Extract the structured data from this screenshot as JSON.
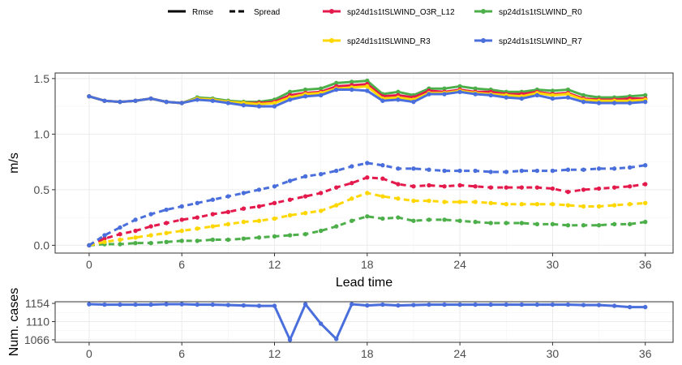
{
  "chart_data": [
    {
      "type": "line",
      "xlabel": "Lead time",
      "ylabel": "m/s",
      "xlim": [
        -2.2,
        37.8
      ],
      "ylim": [
        -0.07,
        1.55
      ],
      "xticks": [
        0,
        6,
        12,
        18,
        24,
        30,
        36
      ],
      "yticks": [
        0.0,
        0.5,
        1.0,
        1.5
      ],
      "ytick_labels": [
        "0.0",
        "0.5",
        "1.0",
        "1.5"
      ],
      "grid": true,
      "legend_position": "top",
      "linetype_legend": [
        {
          "label": "Rmse",
          "style": "solid"
        },
        {
          "label": "Spread",
          "style": "dashed"
        }
      ],
      "x": [
        0,
        1,
        2,
        3,
        4,
        5,
        6,
        7,
        8,
        9,
        10,
        11,
        12,
        13,
        14,
        15,
        16,
        17,
        18,
        19,
        20,
        21,
        22,
        23,
        24,
        25,
        26,
        27,
        28,
        29,
        30,
        31,
        32,
        33,
        34,
        35,
        36
      ],
      "series": [
        {
          "name": "sp24d1s1tSLWIND_R0",
          "color": "#4daf4a",
          "rmse": [
            1.34,
            1.3,
            1.29,
            1.3,
            1.32,
            1.29,
            1.28,
            1.33,
            1.32,
            1.3,
            1.29,
            1.29,
            1.31,
            1.38,
            1.4,
            1.41,
            1.46,
            1.47,
            1.48,
            1.36,
            1.38,
            1.35,
            1.41,
            1.41,
            1.43,
            1.41,
            1.4,
            1.38,
            1.38,
            1.4,
            1.39,
            1.4,
            1.35,
            1.33,
            1.33,
            1.34,
            1.35
          ],
          "spread": [
            0.0,
            0.01,
            0.01,
            0.02,
            0.02,
            0.03,
            0.04,
            0.04,
            0.05,
            0.05,
            0.06,
            0.07,
            0.08,
            0.09,
            0.1,
            0.13,
            0.17,
            0.22,
            0.26,
            0.24,
            0.25,
            0.22,
            0.23,
            0.23,
            0.22,
            0.21,
            0.2,
            0.2,
            0.2,
            0.19,
            0.19,
            0.18,
            0.18,
            0.18,
            0.19,
            0.19,
            0.21
          ]
        },
        {
          "name": "sp24d1s1tSLWIND_O3R_L12",
          "color": "#e41a4c",
          "rmse": [
            1.34,
            1.3,
            1.29,
            1.3,
            1.32,
            1.29,
            1.28,
            1.32,
            1.31,
            1.29,
            1.28,
            1.28,
            1.29,
            1.35,
            1.37,
            1.38,
            1.43,
            1.44,
            1.45,
            1.34,
            1.35,
            1.33,
            1.39,
            1.38,
            1.4,
            1.38,
            1.38,
            1.36,
            1.36,
            1.38,
            1.36,
            1.37,
            1.32,
            1.31,
            1.31,
            1.32,
            1.32
          ],
          "spread": [
            0.0,
            0.06,
            0.1,
            0.13,
            0.17,
            0.2,
            0.23,
            0.25,
            0.28,
            0.3,
            0.33,
            0.35,
            0.38,
            0.41,
            0.44,
            0.47,
            0.52,
            0.56,
            0.61,
            0.6,
            0.55,
            0.53,
            0.54,
            0.53,
            0.54,
            0.53,
            0.52,
            0.52,
            0.52,
            0.52,
            0.51,
            0.48,
            0.5,
            0.51,
            0.52,
            0.53,
            0.55
          ]
        },
        {
          "name": "sp24d1s1tSLWIND_R3",
          "color": "#ffd700",
          "rmse": [
            1.34,
            1.3,
            1.29,
            1.3,
            1.32,
            1.29,
            1.28,
            1.32,
            1.31,
            1.29,
            1.28,
            1.27,
            1.28,
            1.33,
            1.36,
            1.37,
            1.41,
            1.42,
            1.43,
            1.32,
            1.33,
            1.31,
            1.37,
            1.37,
            1.39,
            1.37,
            1.36,
            1.35,
            1.34,
            1.37,
            1.35,
            1.36,
            1.31,
            1.3,
            1.3,
            1.3,
            1.31
          ],
          "spread": [
            0.0,
            0.03,
            0.05,
            0.07,
            0.09,
            0.11,
            0.13,
            0.15,
            0.17,
            0.19,
            0.21,
            0.22,
            0.24,
            0.27,
            0.29,
            0.31,
            0.36,
            0.42,
            0.47,
            0.44,
            0.42,
            0.4,
            0.4,
            0.39,
            0.39,
            0.39,
            0.38,
            0.37,
            0.37,
            0.37,
            0.37,
            0.36,
            0.35,
            0.35,
            0.36,
            0.37,
            0.38
          ]
        },
        {
          "name": "sp24d1s1tSLWIND_R7",
          "color": "#4a6fdc",
          "rmse": [
            1.34,
            1.3,
            1.29,
            1.3,
            1.32,
            1.29,
            1.28,
            1.31,
            1.3,
            1.28,
            1.26,
            1.25,
            1.25,
            1.31,
            1.34,
            1.35,
            1.4,
            1.4,
            1.39,
            1.3,
            1.31,
            1.29,
            1.36,
            1.36,
            1.38,
            1.36,
            1.35,
            1.33,
            1.32,
            1.35,
            1.32,
            1.33,
            1.29,
            1.28,
            1.28,
            1.28,
            1.29
          ],
          "spread": [
            0.0,
            0.09,
            0.16,
            0.23,
            0.28,
            0.32,
            0.35,
            0.38,
            0.41,
            0.44,
            0.47,
            0.5,
            0.53,
            0.58,
            0.62,
            0.64,
            0.67,
            0.71,
            0.74,
            0.72,
            0.69,
            0.69,
            0.68,
            0.67,
            0.67,
            0.67,
            0.66,
            0.66,
            0.67,
            0.67,
            0.67,
            0.68,
            0.68,
            0.69,
            0.69,
            0.7,
            0.72
          ]
        }
      ],
      "legend_order": [
        1,
        0,
        2,
        3
      ]
    },
    {
      "type": "line",
      "xlabel": "",
      "ylabel": "Num. cases",
      "xlim": [
        -2.2,
        37.8
      ],
      "ylim": [
        1060,
        1158
      ],
      "xticks": [
        0,
        6,
        12,
        18,
        24,
        30,
        36
      ],
      "yticks": [
        1066,
        1110,
        1154
      ],
      "grid": true,
      "color": "#4a6fdc",
      "x": [
        0,
        1,
        2,
        3,
        4,
        5,
        6,
        7,
        8,
        9,
        10,
        11,
        12,
        13,
        14,
        15,
        16,
        17,
        18,
        19,
        20,
        21,
        22,
        23,
        24,
        25,
        26,
        27,
        28,
        29,
        30,
        31,
        32,
        33,
        34,
        35,
        36
      ],
      "values": [
        1152,
        1151,
        1151,
        1151,
        1151,
        1152,
        1152,
        1151,
        1151,
        1150,
        1149,
        1148,
        1148,
        1066,
        1152,
        1105,
        1068,
        1152,
        1149,
        1151,
        1149,
        1150,
        1151,
        1151,
        1151,
        1151,
        1151,
        1151,
        1151,
        1151,
        1151,
        1151,
        1150,
        1150,
        1148,
        1145,
        1145
      ]
    }
  ]
}
